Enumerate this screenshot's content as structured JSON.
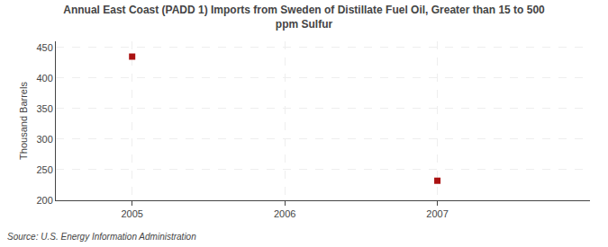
{
  "chart_data": {
    "type": "scatter",
    "title": "Annual East Coast (PADD 1) Imports from Sweden of Distillate Fuel Oil, Greater than 15 to 500\nppm Sulfur",
    "ylabel": "Thousand Barrels",
    "source": "Source: U.S. Energy Information Administration",
    "x": [
      2005,
      2007
    ],
    "values": [
      435,
      232
    ],
    "color": "#aa1111",
    "marker": "square",
    "xlim": [
      2004.5,
      2008.0
    ],
    "ylim": [
      200,
      460
    ],
    "xticks": [
      2005,
      2006,
      2007
    ],
    "yticks": [
      200,
      250,
      300,
      350,
      400,
      450
    ],
    "grid": true
  }
}
